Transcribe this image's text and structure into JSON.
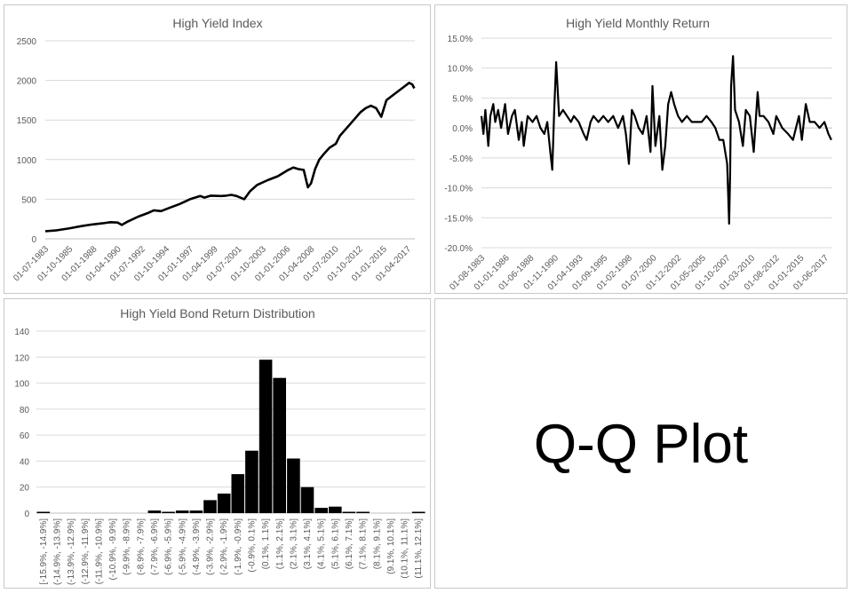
{
  "chart_data": [
    {
      "type": "line",
      "title": "High Yield Index",
      "xlabel": "",
      "ylabel": "",
      "ylim": [
        0,
        2500
      ],
      "yticks": [
        "0",
        "500",
        "1000",
        "1500",
        "2000",
        "2500"
      ],
      "x_tick_labels": [
        "01-07-1983",
        "01-10-1985",
        "01-01-1988",
        "01-04-1990",
        "01-07-1992",
        "01-10-1994",
        "01-01-1997",
        "01-04-1999",
        "01-07-2001",
        "01-10-2003",
        "01-01-2006",
        "01-04-2008",
        "01-07-2010",
        "01-10-2012",
        "01-01-2015",
        "01-04-2017"
      ],
      "series": [
        {
          "name": "",
          "x": [
            1983.5,
            1984.5,
            1985.75,
            1987.0,
            1988.0,
            1989.0,
            1989.8,
            1990.5,
            1990.9,
            1991.5,
            1992.5,
            1993.5,
            1994.0,
            1994.7,
            1995.5,
            1996.5,
            1997.5,
            1998.5,
            1998.9,
            1999.5,
            2000.5,
            2001.0,
            2001.5,
            2002.0,
            2002.75,
            2003.3,
            2004.0,
            2005.0,
            2006.0,
            2007.0,
            2007.5,
            2008.0,
            2008.5,
            2008.9,
            2009.2,
            2009.6,
            2010.0,
            2010.5,
            2011.0,
            2011.6,
            2012.0,
            2013.0,
            2014.0,
            2014.5,
            2015.0,
            2015.5,
            2016.0,
            2016.5,
            2017.0,
            2018.0,
            2018.7,
            2019.0,
            2019.2
          ],
          "values": [
            95,
            105,
            130,
            160,
            180,
            195,
            210,
            205,
            175,
            220,
            280,
            330,
            360,
            350,
            390,
            440,
            500,
            540,
            520,
            545,
            540,
            545,
            555,
            540,
            500,
            600,
            680,
            740,
            790,
            870,
            900,
            880,
            870,
            650,
            700,
            880,
            1000,
            1080,
            1150,
            1200,
            1300,
            1450,
            1600,
            1650,
            1680,
            1650,
            1540,
            1750,
            1800,
            1900,
            1970,
            1950,
            1900
          ]
        }
      ]
    },
    {
      "type": "line",
      "title": "High Yield Monthly Return",
      "xlabel": "",
      "ylabel": "",
      "ylim": [
        -0.2,
        0.15
      ],
      "yticks": [
        "-20.0%",
        "-15.0%",
        "-10.0%",
        "-5.0%",
        "0.0%",
        "5.0%",
        "10.0%",
        "15.0%"
      ],
      "x_tick_labels": [
        "01-08-1983",
        "01-01-1986",
        "01-06-1988",
        "01-11-1990",
        "01-04-1993",
        "01-09-1995",
        "01-02-1998",
        "01-07-2000",
        "01-12-2002",
        "01-05-2005",
        "01-10-2007",
        "01-03-2010",
        "01-08-2012",
        "01-01-2015",
        "01-06-2017"
      ],
      "series": [
        {
          "name": "",
          "x": [
            1983.6,
            1983.8,
            1984.0,
            1984.3,
            1984.5,
            1984.8,
            1985.0,
            1985.3,
            1985.6,
            1986.0,
            1986.3,
            1986.7,
            1987.0,
            1987.4,
            1987.7,
            1987.9,
            1988.3,
            1988.8,
            1989.2,
            1989.6,
            1990.0,
            1990.3,
            1990.6,
            1990.8,
            1991.0,
            1991.2,
            1991.5,
            1991.9,
            1992.3,
            1992.7,
            1993.0,
            1993.5,
            1994.0,
            1994.3,
            1994.7,
            1995.0,
            1995.5,
            1996.0,
            1996.5,
            1997.0,
            1997.5,
            1998.0,
            1998.3,
            1998.6,
            1998.9,
            1999.2,
            1999.6,
            2000.0,
            2000.4,
            2000.8,
            2001.0,
            2001.3,
            2001.7,
            2002.0,
            2002.3,
            2002.6,
            2002.9,
            2003.2,
            2003.6,
            2004.0,
            2004.5,
            2005.0,
            2005.5,
            2006.0,
            2006.5,
            2007.0,
            2007.4,
            2007.8,
            2008.2,
            2008.6,
            2008.8,
            2008.9,
            2009.0,
            2009.2,
            2009.4,
            2009.6,
            2009.8,
            2010.2,
            2010.5,
            2010.9,
            2011.3,
            2011.7,
            2011.9,
            2012.3,
            2012.8,
            2013.3,
            2013.6,
            2014.2,
            2014.8,
            2015.3,
            2015.9,
            2016.2,
            2016.6,
            2017.0,
            2017.5,
            2018.0,
            2018.5,
            2018.9,
            2019.2
          ],
          "values": [
            0.02,
            -0.01,
            0.03,
            -0.03,
            0.02,
            0.04,
            0.01,
            0.03,
            0.0,
            0.04,
            -0.01,
            0.02,
            0.03,
            -0.02,
            0.01,
            -0.03,
            0.02,
            0.01,
            0.02,
            0.0,
            -0.01,
            0.01,
            -0.04,
            -0.07,
            0.03,
            0.11,
            0.02,
            0.03,
            0.02,
            0.01,
            0.02,
            0.01,
            -0.01,
            -0.02,
            0.01,
            0.02,
            0.01,
            0.02,
            0.01,
            0.02,
            0.0,
            0.02,
            -0.01,
            -0.06,
            0.03,
            0.02,
            0.0,
            -0.01,
            0.02,
            -0.04,
            0.07,
            -0.03,
            0.02,
            -0.07,
            -0.03,
            0.04,
            0.06,
            0.04,
            0.02,
            0.01,
            0.02,
            0.01,
            0.01,
            0.01,
            0.02,
            0.01,
            0.0,
            -0.02,
            -0.02,
            -0.06,
            -0.16,
            -0.08,
            0.07,
            0.12,
            0.03,
            0.02,
            0.01,
            -0.03,
            0.03,
            0.02,
            -0.04,
            0.06,
            0.02,
            0.02,
            0.01,
            -0.01,
            0.02,
            0.0,
            -0.01,
            -0.02,
            0.02,
            -0.02,
            0.04,
            0.01,
            0.01,
            0.0,
            0.01,
            -0.01,
            -0.02
          ]
        }
      ]
    },
    {
      "type": "bar",
      "title": "High Yield Bond Return Distribution",
      "xlabel": "",
      "ylabel": "",
      "ylim": [
        0,
        140
      ],
      "yticks": [
        "0",
        "20",
        "40",
        "60",
        "80",
        "100",
        "120",
        "140"
      ],
      "categories": [
        "[-15.9%, -14.9%]",
        "(-14.9%, -13.9%]",
        "(-13.9%, -12.9%]",
        "(-12.9%, -11.9%]",
        "(-11.9%, -10.9%]",
        "(-10.9%, -9.9%]",
        "(-9.9%, -8.9%]",
        "(-8.9%, -7.9%]",
        "(-7.9%, -6.9%]",
        "(-6.9%, -5.9%]",
        "(-5.9%, -4.9%]",
        "(-4.9%, -3.9%]",
        "(-3.9%, -2.9%]",
        "(-2.9%, -1.9%]",
        "(-1.9%, -0.9%]",
        "(-0.9%, 0.1%]",
        "(0.1%, 1.1%]",
        "(1.1%, 2.1%]",
        "(2.1%, 3.1%]",
        "(3.1%, 4.1%]",
        "(4.1%, 5.1%]",
        "(5.1%, 6.1%]",
        "(6.1%, 7.1%]",
        "(7.1%, 8.1%]",
        "(8.1%, 9.1%]",
        "(9.1%, 10.1%]",
        "(10.1%, 11.1%]",
        "(11.1%, 12.1%]"
      ],
      "values": [
        1,
        0,
        0,
        0,
        0,
        0,
        0,
        0,
        2,
        1,
        2,
        2,
        10,
        15,
        30,
        48,
        118,
        104,
        42,
        20,
        4,
        5,
        1,
        1,
        0,
        0,
        0,
        1
      ]
    }
  ],
  "qq_panel": {
    "label": "Q-Q Plot"
  }
}
